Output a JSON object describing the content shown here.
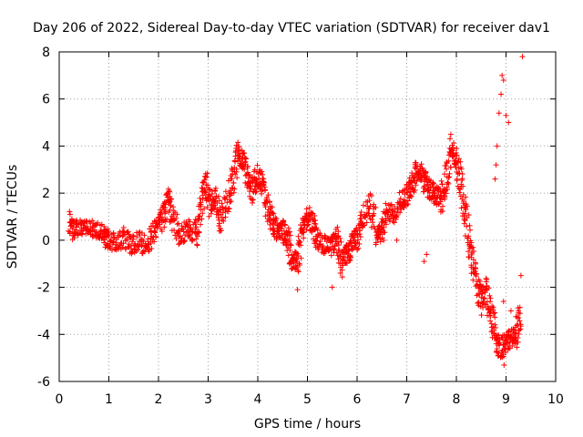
{
  "chart_data": {
    "type": "scatter",
    "title": "Day 206 of 2022, Sidereal Day-to-day VTEC variation (SDTVAR) for receiver dav1",
    "xlabel": "GPS time / hours",
    "ylabel": "SDTVAR / TECUs",
    "xlim": [
      0,
      10
    ],
    "ylim": [
      -6,
      8
    ],
    "xticks": [
      0,
      1,
      2,
      3,
      4,
      5,
      6,
      7,
      8,
      9,
      10
    ],
    "yticks": [
      -6,
      -4,
      -2,
      0,
      2,
      4,
      6,
      8
    ],
    "grid": true,
    "marker": "+",
    "color": "#ff0000",
    "trace": [
      [
        0.2,
        0.8
      ],
      [
        0.3,
        0.4
      ],
      [
        0.45,
        0.6
      ],
      [
        0.6,
        0.5
      ],
      [
        0.75,
        0.4
      ],
      [
        0.9,
        0.2
      ],
      [
        1.0,
        0.0
      ],
      [
        1.15,
        -0.1
      ],
      [
        1.3,
        0.1
      ],
      [
        1.45,
        -0.2
      ],
      [
        1.6,
        0.0
      ],
      [
        1.75,
        -0.3
      ],
      [
        1.9,
        0.3
      ],
      [
        2.0,
        0.6
      ],
      [
        2.1,
        1.0
      ],
      [
        2.2,
        1.6
      ],
      [
        2.3,
        0.9
      ],
      [
        2.45,
        0.2
      ],
      [
        2.6,
        0.5
      ],
      [
        2.75,
        0.3
      ],
      [
        2.85,
        1.3
      ],
      [
        2.95,
        2.5
      ],
      [
        3.05,
        1.5
      ],
      [
        3.15,
        1.8
      ],
      [
        3.25,
        0.9
      ],
      [
        3.4,
        1.8
      ],
      [
        3.5,
        2.6
      ],
      [
        3.6,
        3.6
      ],
      [
        3.7,
        3.4
      ],
      [
        3.8,
        2.6
      ],
      [
        3.9,
        2.0
      ],
      [
        4.0,
        2.8
      ],
      [
        4.1,
        2.3
      ],
      [
        4.2,
        1.4
      ],
      [
        4.3,
        0.7
      ],
      [
        4.4,
        0.4
      ],
      [
        4.5,
        0.4
      ],
      [
        4.6,
        0.0
      ],
      [
        4.7,
        -0.8
      ],
      [
        4.8,
        -0.9
      ],
      [
        4.9,
        0.3
      ],
      [
        5.0,
        1.1
      ],
      [
        5.1,
        0.7
      ],
      [
        5.2,
        0.0
      ],
      [
        5.35,
        -0.2
      ],
      [
        5.5,
        -0.4
      ],
      [
        5.6,
        0.1
      ],
      [
        5.7,
        -0.9
      ],
      [
        5.8,
        -0.6
      ],
      [
        5.9,
        -0.2
      ],
      [
        6.0,
        0.1
      ],
      [
        6.1,
        0.9
      ],
      [
        6.25,
        1.5
      ],
      [
        6.4,
        0.4
      ],
      [
        6.5,
        0.3
      ],
      [
        6.6,
        1.1
      ],
      [
        6.75,
        1.2
      ],
      [
        6.9,
        1.7
      ],
      [
        7.0,
        1.9
      ],
      [
        7.1,
        2.4
      ],
      [
        7.2,
        2.9
      ],
      [
        7.3,
        2.8
      ],
      [
        7.4,
        2.3
      ],
      [
        7.5,
        2.1
      ],
      [
        7.6,
        1.9
      ],
      [
        7.7,
        1.8
      ],
      [
        7.8,
        2.7
      ],
      [
        7.9,
        3.8
      ],
      [
        8.0,
        3.5
      ],
      [
        8.1,
        2.3
      ],
      [
        8.2,
        0.8
      ],
      [
        8.3,
        -0.7
      ],
      [
        8.4,
        -1.8
      ],
      [
        8.5,
        -2.6
      ],
      [
        8.6,
        -2.2
      ],
      [
        8.7,
        -3.2
      ],
      [
        8.8,
        -4.3
      ],
      [
        8.9,
        -4.6
      ],
      [
        9.0,
        -4.3
      ],
      [
        9.1,
        -4.2
      ],
      [
        9.2,
        -4.0
      ],
      [
        9.3,
        -2.8
      ]
    ],
    "extra_points": [
      [
        8.82,
        4.0
      ],
      [
        8.86,
        5.4
      ],
      [
        8.9,
        6.2
      ],
      [
        8.92,
        7.0
      ],
      [
        8.95,
        6.8
      ],
      [
        9.0,
        5.3
      ],
      [
        9.05,
        5.0
      ],
      [
        8.8,
        3.2
      ],
      [
        8.78,
        2.6
      ],
      [
        9.33,
        7.8
      ],
      [
        8.95,
        -2.6
      ],
      [
        9.1,
        -3.0
      ],
      [
        9.25,
        -3.3
      ],
      [
        9.3,
        -1.5
      ],
      [
        8.96,
        -5.3
      ],
      [
        7.35,
        -0.9
      ],
      [
        7.4,
        -0.6
      ],
      [
        6.8,
        0.0
      ],
      [
        5.5,
        -2.0
      ],
      [
        4.8,
        -2.1
      ]
    ]
  }
}
